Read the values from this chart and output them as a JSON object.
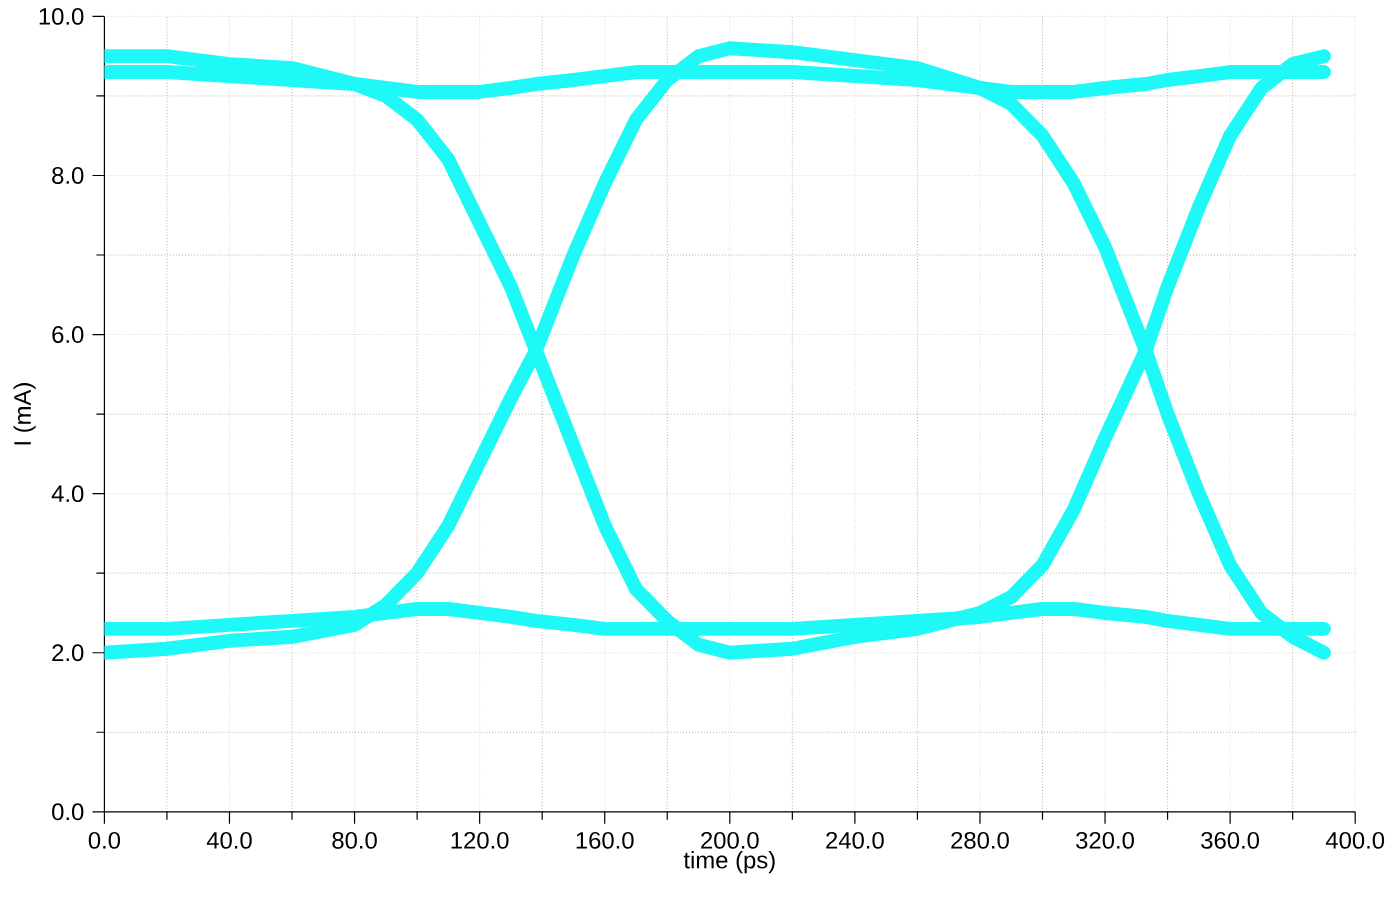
{
  "chart_data": {
    "type": "line",
    "xlabel": "time (ps)",
    "ylabel": "I (mA)",
    "x": [
      0,
      20,
      40,
      60,
      80,
      90,
      100,
      110,
      120,
      130,
      138,
      150,
      160,
      170,
      180,
      190,
      200,
      220,
      240,
      260,
      280,
      290,
      300,
      310,
      320,
      333,
      340,
      350,
      360,
      370,
      380,
      390
    ],
    "series": [
      {
        "color": "#1ef8f6",
        "values": [
          9.5,
          9.5,
          9.4,
          9.35,
          9.15,
          9.0,
          8.7,
          8.2,
          7.4,
          6.6,
          5.8,
          4.6,
          3.6,
          2.8,
          2.4,
          2.1,
          2.0,
          2.05,
          2.2,
          2.3,
          2.5,
          2.7,
          3.1,
          3.8,
          4.7,
          5.8,
          6.6,
          7.6,
          8.5,
          9.1,
          9.4,
          9.5
        ]
      },
      {
        "color": "#1ef8f6",
        "values": [
          2.0,
          2.05,
          2.15,
          2.2,
          2.35,
          2.6,
          3.0,
          3.6,
          4.4,
          5.2,
          5.8,
          7.0,
          7.9,
          8.7,
          9.2,
          9.5,
          9.6,
          9.55,
          9.45,
          9.35,
          9.1,
          8.9,
          8.5,
          7.9,
          7.1,
          5.8,
          5.0,
          4.0,
          3.1,
          2.5,
          2.2,
          2.0
        ]
      },
      {
        "color": "#1ef8f6",
        "values": [
          9.3,
          9.3,
          9.25,
          9.2,
          9.15,
          9.1,
          9.05,
          9.05,
          9.05,
          9.1,
          9.15,
          9.2,
          9.25,
          9.3,
          9.3,
          9.3,
          9.3,
          9.3,
          9.25,
          9.2,
          9.1,
          9.05,
          9.05,
          9.05,
          9.1,
          9.15,
          9.2,
          9.25,
          9.3,
          9.3,
          9.3,
          9.3
        ]
      },
      {
        "color": "#1ef8f6",
        "values": [
          2.3,
          2.3,
          2.35,
          2.4,
          2.45,
          2.5,
          2.55,
          2.55,
          2.5,
          2.45,
          2.4,
          2.35,
          2.3,
          2.3,
          2.3,
          2.3,
          2.3,
          2.3,
          2.35,
          2.4,
          2.45,
          2.5,
          2.55,
          2.55,
          2.5,
          2.45,
          2.4,
          2.35,
          2.3,
          2.3,
          2.3,
          2.3
        ]
      }
    ],
    "xlim": [
      0,
      400
    ],
    "ylim": [
      0,
      10
    ],
    "xticks": [
      {
        "value": 0,
        "label": "0.0"
      },
      {
        "value": 40,
        "label": "40.0"
      },
      {
        "value": 80,
        "label": "80.0"
      },
      {
        "value": 120,
        "label": "120.0"
      },
      {
        "value": 160,
        "label": "160.0"
      },
      {
        "value": 200,
        "label": "200.0"
      },
      {
        "value": 240,
        "label": "240.0"
      },
      {
        "value": 280,
        "label": "280.0"
      },
      {
        "value": 320,
        "label": "320.0"
      },
      {
        "value": 360,
        "label": "360.0"
      },
      {
        "value": 400,
        "label": "400.0"
      }
    ],
    "yticks": [
      {
        "value": 0,
        "label": "0.0"
      },
      {
        "value": 2,
        "label": "2.0"
      },
      {
        "value": 4,
        "label": "4.0"
      },
      {
        "value": 6,
        "label": "6.0"
      },
      {
        "value": 8,
        "label": "8.0"
      },
      {
        "value": 10,
        "label": "10.0"
      }
    ],
    "grid": true,
    "legend": false,
    "marker": "none",
    "line_style": "solid"
  }
}
